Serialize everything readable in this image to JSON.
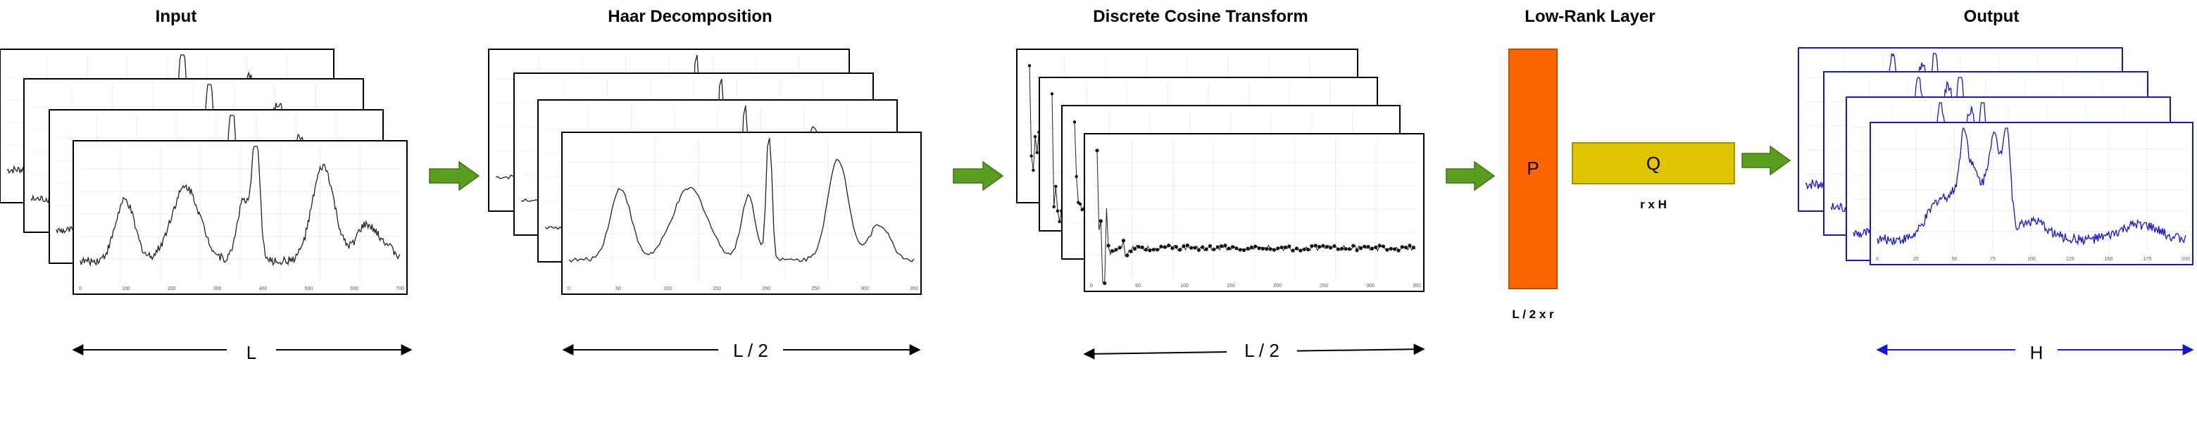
{
  "titles": {
    "input": "Input",
    "haar": "Haar Decomposition",
    "dct": "Discrete Cosine Transform",
    "lowrank": "Low-Rank Layer",
    "output": "Output"
  },
  "dimensions": {
    "input": "L",
    "haar": "L / 2",
    "dct": "L / 2",
    "output": "H"
  },
  "matrices": {
    "p_label": "P",
    "p_dim": "L / 2 x r",
    "q_label": "Q",
    "q_dim": "r x H"
  },
  "axis_ticks": {
    "input": [
      "0",
      "100",
      "200",
      "300",
      "400",
      "500",
      "600",
      "700"
    ],
    "haar": [
      "0",
      "50",
      "100",
      "150",
      "200",
      "250",
      "300",
      "350"
    ],
    "dct": [
      "0",
      "50",
      "100",
      "150",
      "200",
      "250",
      "300",
      "350"
    ],
    "output": [
      "0",
      "25",
      "50",
      "75",
      "100",
      "125",
      "150",
      "175",
      "200"
    ]
  },
  "colors": {
    "arrow_green": "#5a9e1f",
    "p_fill": "#ff6600",
    "q_fill": "#e0c400",
    "output_blue": "#1515d6",
    "line_black": "#000000"
  }
}
